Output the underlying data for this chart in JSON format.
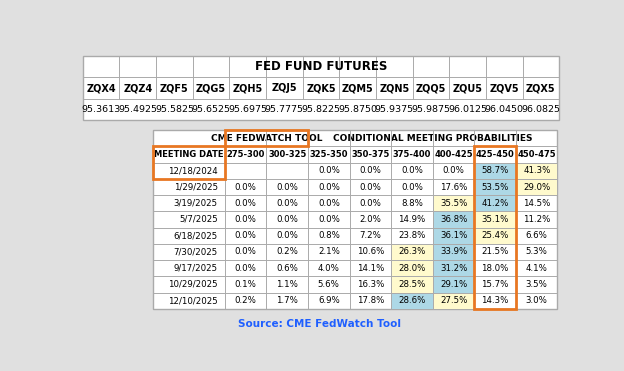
{
  "title": "FED FUND FUTURES",
  "futures_headers": [
    "ZQX4",
    "ZQZ4",
    "ZQF5",
    "ZQG5",
    "ZQH5",
    "ZQJ5",
    "ZQK5",
    "ZQM5",
    "ZQN5",
    "ZQQ5",
    "ZQU5",
    "ZQV5",
    "ZQX5"
  ],
  "futures_values": [
    "95.3613",
    "95.4925",
    "95.5825",
    "95.6525",
    "95.6975",
    "95.7775",
    "95.8225",
    "95.8750",
    "95.9375",
    "95.9875",
    "96.0125",
    "96.0450",
    "96.0825"
  ],
  "prob_header1": "CME FEDWATCH TOOL",
  "prob_header2": "CONDITIONAL MEETING PROBABILITIES",
  "col_headers": [
    "MEETING DATE",
    "275-300",
    "300-325",
    "325-350",
    "350-375",
    "375-400",
    "400-425",
    "425-450",
    "450-475"
  ],
  "rows": [
    [
      "12/18/2024",
      "",
      "",
      "0.0%",
      "0.0%",
      "0.0%",
      "0.0%",
      "58.7%",
      "41.3%"
    ],
    [
      "1/29/2025",
      "0.0%",
      "0.0%",
      "0.0%",
      "0.0%",
      "0.0%",
      "17.6%",
      "53.5%",
      "29.0%"
    ],
    [
      "3/19/2025",
      "0.0%",
      "0.0%",
      "0.0%",
      "0.0%",
      "8.8%",
      "35.5%",
      "41.2%",
      "14.5%"
    ],
    [
      "5/7/2025",
      "0.0%",
      "0.0%",
      "0.0%",
      "2.0%",
      "14.9%",
      "36.8%",
      "35.1%",
      "11.2%"
    ],
    [
      "6/18/2025",
      "0.0%",
      "0.0%",
      "0.8%",
      "7.2%",
      "23.8%",
      "36.1%",
      "25.4%",
      "6.6%"
    ],
    [
      "7/30/2025",
      "0.0%",
      "0.2%",
      "2.1%",
      "10.6%",
      "26.3%",
      "33.9%",
      "21.5%",
      "5.3%"
    ],
    [
      "9/17/2025",
      "0.0%",
      "0.6%",
      "4.0%",
      "14.1%",
      "28.0%",
      "31.2%",
      "18.0%",
      "4.1%"
    ],
    [
      "10/29/2025",
      "0.1%",
      "1.1%",
      "5.6%",
      "16.3%",
      "28.5%",
      "29.1%",
      "15.7%",
      "3.5%"
    ],
    [
      "12/10/2025",
      "0.2%",
      "1.7%",
      "6.9%",
      "17.8%",
      "28.6%",
      "27.5%",
      "14.3%",
      "3.0%"
    ]
  ],
  "source_text": "Source: CME FedWatch Tool",
  "source_color": "#1F5FFF",
  "bg_color": "#E0E0E0",
  "orange_border_color": "#E87722",
  "cell_highlight_blue": "#ADD8E6",
  "cell_highlight_yellow": "#FFFACD"
}
